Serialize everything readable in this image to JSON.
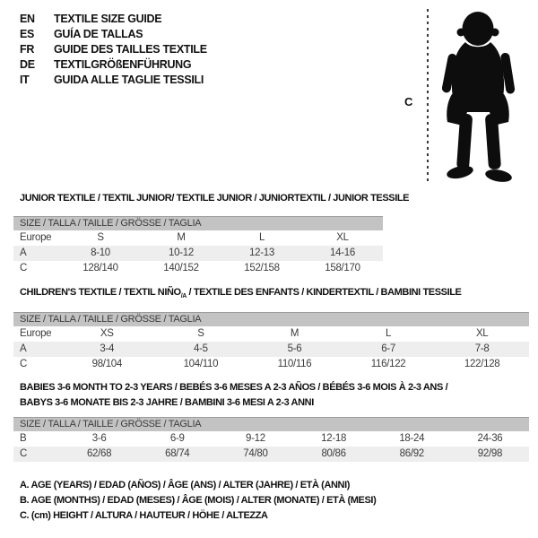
{
  "header": {
    "languages": [
      {
        "code": "EN",
        "label": "TEXTILE SIZE GUIDE"
      },
      {
        "code": "ES",
        "label": "GUÍA DE TALLAS"
      },
      {
        "code": "FR",
        "label": "GUIDE DES TAILLES TEXTILE"
      },
      {
        "code": "DE",
        "label": "TEXTILGRÖßENFÜHRUNG"
      },
      {
        "code": "IT",
        "label": "GUIDA ALLE TAGLIE TESSILI"
      }
    ]
  },
  "figure": {
    "measure_label": "C"
  },
  "tables": [
    {
      "title_lines": [
        [
          {
            "t": "JUNIOR TEXTILE / TEXTIL JUNIOR/ TEXTILE JUNIOR / JUNIORTEXTIL / JUNIOR TESSILE"
          }
        ]
      ],
      "size_header": "SIZE / TALLA / TAILLE / GRÖSSE / TAGLIA",
      "rows": [
        {
          "label": "Europe",
          "values": [
            "S",
            "M",
            "L",
            "XL"
          ],
          "shaded": false
        },
        {
          "label": "A",
          "values": [
            "8-10",
            "10-12",
            "12-13",
            "14-16"
          ],
          "shaded": true
        },
        {
          "label": "C",
          "values": [
            "128/140",
            "140/152",
            "152/158",
            "158/170"
          ],
          "shaded": false
        }
      ]
    },
    {
      "title_lines": [
        [
          {
            "t": "CHILDREN'S TEXTILE / TEXTIL NIÑO"
          },
          {
            "t": "/A",
            "sub": true
          },
          {
            "t": " / TEXTILE DES ENFANTS / KINDERTEXTIL / BAMBINI TESSILE"
          }
        ]
      ],
      "size_header": "SIZE / TALLA / TAILLE / GRÖSSE / TAGLIA",
      "rows": [
        {
          "label": "Europe",
          "values": [
            "XS",
            "S",
            "M",
            "L",
            "XL"
          ],
          "shaded": false
        },
        {
          "label": "A",
          "values": [
            "3-4",
            "4-5",
            "5-6",
            "6-7",
            "7-8"
          ],
          "shaded": true
        },
        {
          "label": "C",
          "values": [
            "98/104",
            "104/110",
            "110/116",
            "116/122",
            "122/128"
          ],
          "shaded": false
        }
      ]
    },
    {
      "title_lines": [
        [
          {
            "t": "BABIES 3-6 MONTH TO 2-3 YEARS / BEBÉS 3-6 MESES A 2-3 AÑOS / BÉBÉS 3-6 MOIS À 2-3 ANS /"
          }
        ],
        [
          {
            "t": "BABYS 3-6 MONATE BIS 2-3 JAHRE / BAMBINI 3-6 MESI A 2-3 ANNI"
          }
        ]
      ],
      "size_header": "SIZE / TALLA / TAILLE / GRÖSSE / TAGLIA",
      "rows": [
        {
          "label": "B",
          "values": [
            "3-6",
            "6-9",
            "9-12",
            "12-18",
            "18-24",
            "24-36"
          ],
          "shaded": false
        },
        {
          "label": "C",
          "values": [
            "62/68",
            "68/74",
            "74/80",
            "80/86",
            "86/92",
            "92/98"
          ],
          "shaded": true
        }
      ]
    }
  ],
  "footnotes": [
    "A. AGE (YEARS) / EDAD (AÑOS) / ÂGE (ANS) / ALTER (JAHRE) / ETÀ (ANNI)",
    "B. AGE (MONTHS) / EDAD (MESES) / ÂGE (MOIS) / ALTER (MONATE) / ETÀ (MESI)",
    "C. (cm) HEIGHT / ALTURA / HAUTEUR / HÖHE / ALTEZZA"
  ],
  "colors": {
    "header_bar": "#c3c3c3",
    "header_bar_border": "#9d9d9d",
    "row_shaded": "#eeeeee",
    "title_text": "#111111",
    "table_text": "#3c3c3c"
  }
}
